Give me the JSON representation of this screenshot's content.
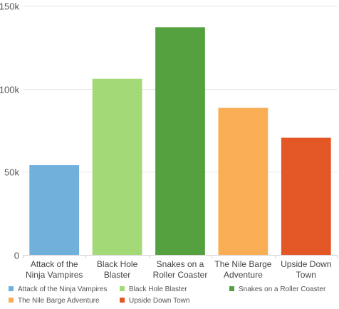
{
  "chart_data": {
    "type": "bar",
    "title": "",
    "xlabel": "",
    "ylabel": "",
    "categories": [
      "Attack of the Ninja Vampires",
      "Black Hole Blaster",
      "Snakes on a Roller Coaster",
      "The Nile Barge Adventure",
      "Upside Down Town"
    ],
    "category_lines": [
      [
        "Attack of the",
        "Ninja Vampires"
      ],
      [
        "Black Hole",
        "Blaster"
      ],
      [
        "Snakes on a",
        "Roller Coaster"
      ],
      [
        "The Nile Barge",
        "Adventure"
      ],
      [
        "Upside Down",
        "Town"
      ]
    ],
    "values": [
      54000,
      106000,
      137000,
      88500,
      70500
    ],
    "colors": [
      "#72b0dc",
      "#a3d977",
      "#55a13f",
      "#f9ad55",
      "#e35726"
    ],
    "ylim": [
      0,
      150000
    ],
    "y_ticks": [
      0,
      50000,
      100000,
      150000
    ],
    "y_tick_labels": [
      "0",
      "50k",
      "100k",
      "150k"
    ],
    "grid": true,
    "legend_position": "bottom",
    "legend": [
      "Attack of the Ninja Vampires",
      "Black Hole Blaster",
      "Snakes on a Roller Coaster",
      "The Nile Barge Adventure",
      "Upside Down Town"
    ]
  }
}
